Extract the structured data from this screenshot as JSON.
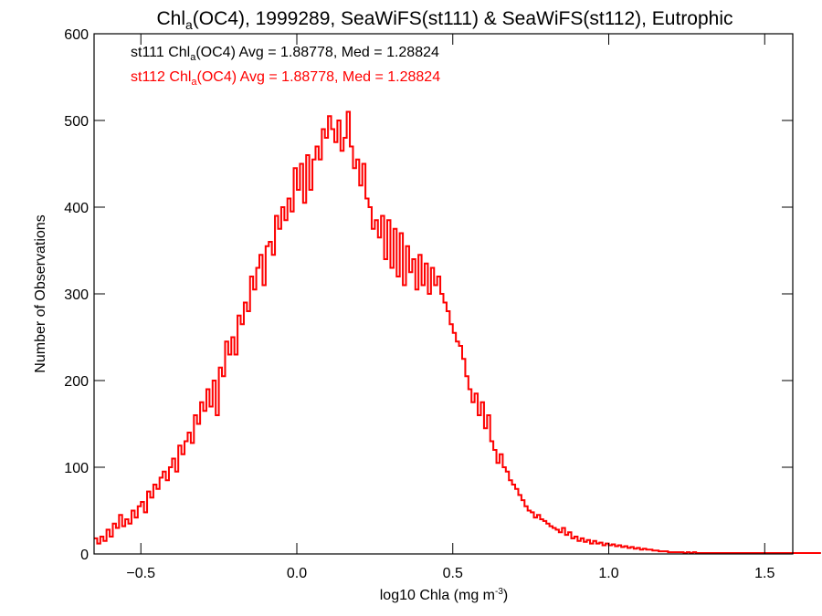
{
  "chart_data": {
    "type": "histogram",
    "title": {
      "main": "Chl",
      "sub": "a",
      "rest": "(OC4), 1999289, SeaWiFS(st111) & SeaWiFS(st112), Eutrophic"
    },
    "xlabel": {
      "main": "log10 Chla (mg m",
      "sup": "-3",
      "close": ")"
    },
    "ylabel": "Number of Observations",
    "xlim": [
      -0.65,
      1.59
    ],
    "ylim": [
      0,
      600
    ],
    "xticks": [
      -0.5,
      0.0,
      0.5,
      1.0,
      1.5
    ],
    "xtick_labels": [
      "−0.5",
      "0.0",
      "0.5",
      "1.0",
      "1.5"
    ],
    "yticks": [
      0,
      100,
      200,
      300,
      400,
      500,
      600
    ],
    "ytick_labels": [
      "0",
      "100",
      "200",
      "300",
      "400",
      "500",
      "600"
    ],
    "annotations": [
      {
        "pre": "st111 Chl",
        "sub": "a",
        "post": "(OC4) Avg = 1.88778, Med = 1.28824",
        "color": "#000000"
      },
      {
        "pre": "st112 Chl",
        "sub": "a",
        "post": "(OC4) Avg = 1.88778, Med = 1.28824",
        "color": "#ff0000"
      }
    ],
    "series": [
      {
        "name": "st111",
        "color": "#000000"
      },
      {
        "name": "st112",
        "color": "#ff0000"
      }
    ],
    "bin_start": -0.65,
    "bin_width": 0.01,
    "counts": [
      18,
      12,
      20,
      15,
      28,
      20,
      35,
      30,
      45,
      32,
      40,
      35,
      50,
      42,
      55,
      60,
      48,
      72,
      65,
      80,
      75,
      88,
      95,
      85,
      100,
      110,
      95,
      125,
      115,
      130,
      140,
      128,
      160,
      150,
      175,
      165,
      190,
      170,
      200,
      160,
      215,
      205,
      245,
      230,
      250,
      230,
      275,
      265,
      290,
      280,
      320,
      305,
      330,
      345,
      310,
      355,
      360,
      345,
      390,
      375,
      400,
      385,
      410,
      395,
      445,
      420,
      450,
      405,
      460,
      420,
      455,
      470,
      455,
      490,
      480,
      505,
      490,
      475,
      500,
      465,
      480,
      510,
      470,
      445,
      455,
      425,
      450,
      410,
      400,
      375,
      385,
      365,
      390,
      340,
      385,
      330,
      375,
      320,
      370,
      310,
      355,
      325,
      340,
      305,
      345,
      310,
      335,
      300,
      330,
      310,
      320,
      300,
      290,
      280,
      265,
      255,
      245,
      240,
      225,
      205,
      190,
      175,
      185,
      160,
      175,
      145,
      160,
      130,
      120,
      105,
      115,
      100,
      95,
      85,
      80,
      75,
      68,
      62,
      55,
      50,
      48,
      42,
      45,
      40,
      38,
      35,
      32,
      30,
      28,
      25,
      30,
      22,
      25,
      18,
      20,
      15,
      18,
      14,
      16,
      12,
      15,
      12,
      13,
      10,
      12,
      10,
      11,
      9,
      10,
      8,
      9,
      7,
      8,
      6,
      7,
      5,
      6,
      5,
      5,
      4,
      4,
      3,
      3,
      3,
      2,
      2,
      2,
      2,
      2,
      1,
      2,
      1,
      2,
      1,
      1,
      1,
      1,
      1,
      1,
      1,
      1,
      1,
      1,
      1,
      1,
      1,
      1,
      1,
      1,
      1,
      1,
      1,
      1,
      1,
      1,
      1,
      1,
      1,
      1,
      1,
      1,
      1,
      1,
      1,
      1,
      1,
      1,
      1,
      1,
      1,
      1,
      1,
      1,
      1
    ],
    "grid": false
  }
}
